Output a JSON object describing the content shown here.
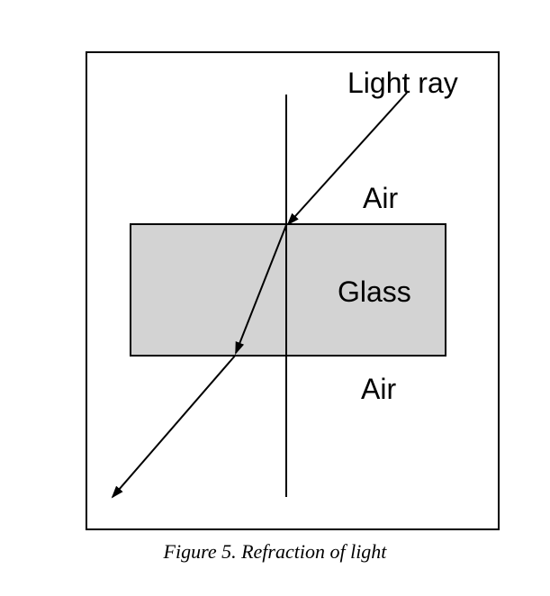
{
  "figure": {
    "labels": {
      "light_ray": "Light ray",
      "air_top": "Air",
      "glass": "Glass",
      "air_bottom": "Air"
    },
    "caption": "Figure 5. Refraction of light"
  },
  "colors": {
    "glass_fill": "#d3d3d3",
    "line": "#000000",
    "background": "#ffffff"
  }
}
